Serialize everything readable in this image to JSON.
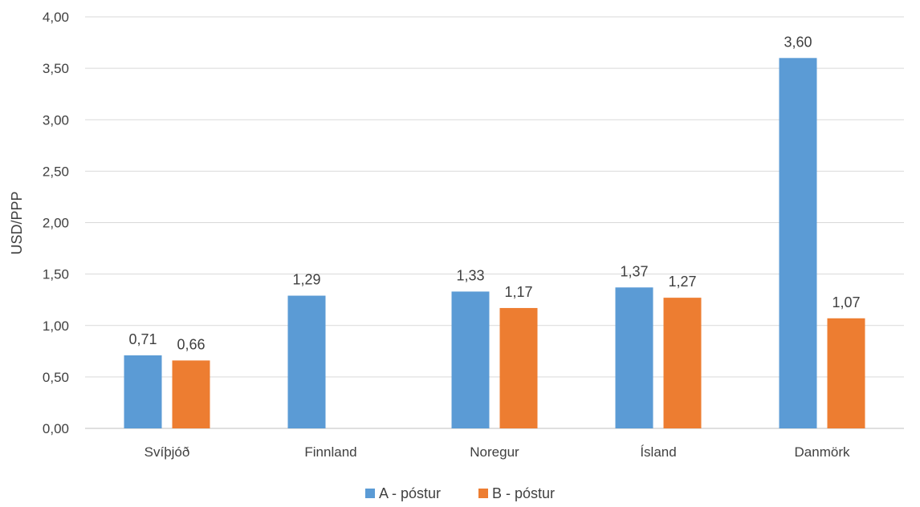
{
  "chart_data": {
    "type": "bar",
    "categories": [
      "Svíþjóð",
      "Finnland",
      "Noregur",
      "Ísland",
      "Danmörk"
    ],
    "series": [
      {
        "name": "A - póstur",
        "color": "#5B9BD5",
        "values": [
          0.71,
          1.29,
          1.33,
          1.37,
          3.6
        ]
      },
      {
        "name": "B - póstur",
        "color": "#ED7D31",
        "values": [
          0.66,
          null,
          1.17,
          1.27,
          1.07
        ]
      }
    ],
    "data_labels": [
      [
        "0,71",
        "1,29",
        "1,33",
        "1,37",
        "3,60"
      ],
      [
        "0,66",
        null,
        "1,17",
        "1,27",
        "1,07"
      ]
    ],
    "ylabel": "USD/PPP",
    "ylim": [
      0,
      4
    ],
    "yticks": [
      0,
      0.5,
      1,
      1.5,
      2,
      2.5,
      3,
      3.5,
      4
    ],
    "ytick_labels": [
      "0,00",
      "0,50",
      "1,00",
      "1,50",
      "2,00",
      "2,50",
      "3,00",
      "3,50",
      "4,00"
    ],
    "grid": true,
    "legend_position": "bottom"
  }
}
